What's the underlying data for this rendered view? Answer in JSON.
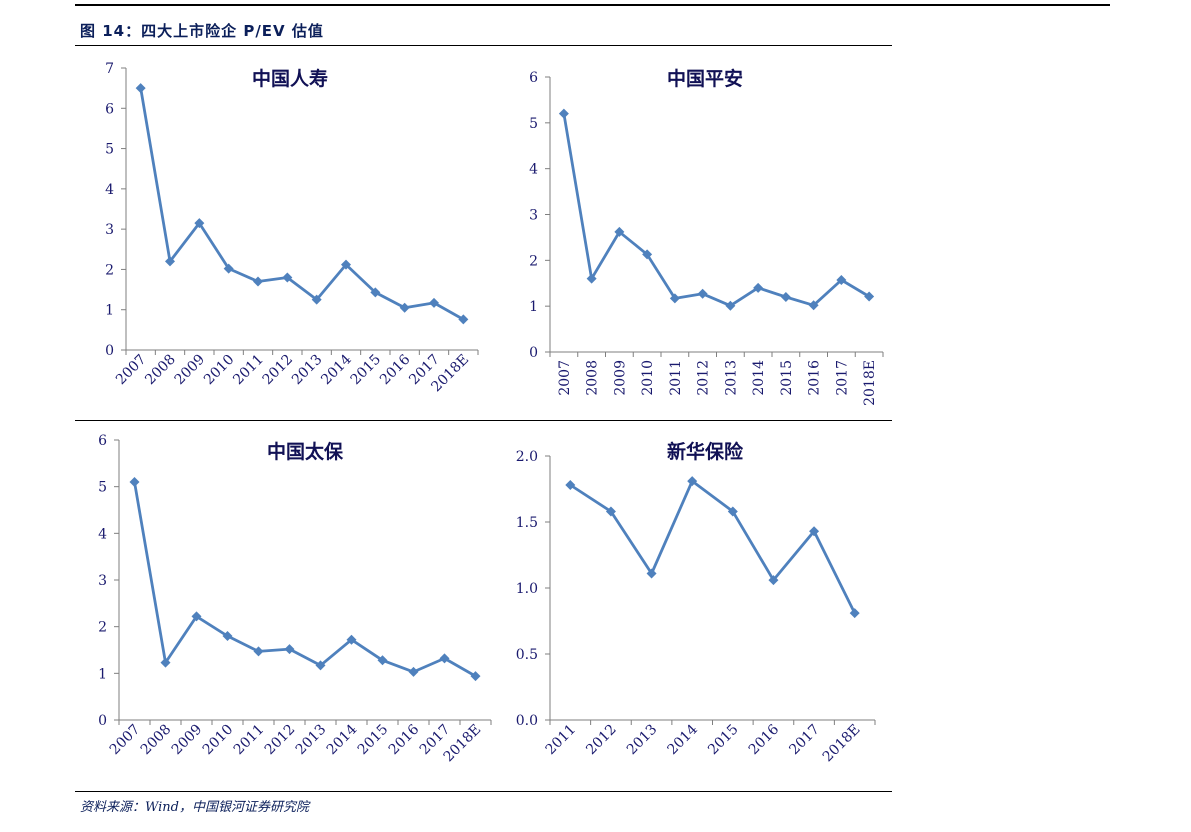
{
  "figure": {
    "title": "图 14：四大上市险企 P/EV 估值",
    "source": "资料来源：Wind，中国银河证券研究院"
  },
  "colors": {
    "line": "#4f81bd",
    "axis": "#7f7f7f",
    "text": "#1a1a6e"
  },
  "chart_data": [
    {
      "type": "line",
      "title": "中国人寿",
      "categories": [
        "2007",
        "2008",
        "2009",
        "2010",
        "2011",
        "2012",
        "2013",
        "2014",
        "2015",
        "2016",
        "2017",
        "2018E"
      ],
      "values": [
        6.5,
        2.2,
        3.15,
        2.02,
        1.7,
        1.8,
        1.25,
        2.12,
        1.43,
        1.05,
        1.17,
        0.76
      ],
      "ylim": [
        0,
        7
      ],
      "yticks": [
        "0",
        "1",
        "2",
        "3",
        "4",
        "5",
        "6",
        "7"
      ],
      "grid": false,
      "xlabel_rotation": "45deg"
    },
    {
      "type": "line",
      "title": "中国平安",
      "categories": [
        "2007",
        "2008",
        "2009",
        "2010",
        "2011",
        "2012",
        "2013",
        "2014",
        "2015",
        "2016",
        "2017",
        "2018E"
      ],
      "values": [
        5.2,
        1.6,
        2.62,
        2.13,
        1.17,
        1.27,
        1.01,
        1.4,
        1.2,
        1.02,
        1.57,
        1.21
      ],
      "ylim": [
        0,
        6
      ],
      "yticks": [
        "0",
        "1",
        "2",
        "3",
        "4",
        "5",
        "6"
      ],
      "grid": false,
      "xlabel_rotation": "90deg"
    },
    {
      "type": "line",
      "title": "中国太保",
      "categories": [
        "2007",
        "2008",
        "2009",
        "2010",
        "2011",
        "2012",
        "2013",
        "2014",
        "2015",
        "2016",
        "2017",
        "2018E"
      ],
      "values": [
        5.1,
        1.23,
        2.22,
        1.8,
        1.47,
        1.52,
        1.17,
        1.72,
        1.28,
        1.03,
        1.32,
        0.94
      ],
      "ylim": [
        0,
        6
      ],
      "yticks": [
        "0",
        "1",
        "2",
        "3",
        "4",
        "5",
        "6"
      ],
      "grid": false,
      "xlabel_rotation": "45deg"
    },
    {
      "type": "line",
      "title": "新华保险",
      "categories": [
        "2011",
        "2012",
        "2013",
        "2014",
        "2015",
        "2016",
        "2017",
        "2018E"
      ],
      "values": [
        1.78,
        1.58,
        1.11,
        1.81,
        1.58,
        1.06,
        1.43,
        0.81
      ],
      "ylim": [
        0,
        2
      ],
      "yticks": [
        "0.0",
        "0.5",
        "1.0",
        "1.5",
        "2.0"
      ],
      "grid": false,
      "xlabel_rotation": "45deg"
    }
  ]
}
